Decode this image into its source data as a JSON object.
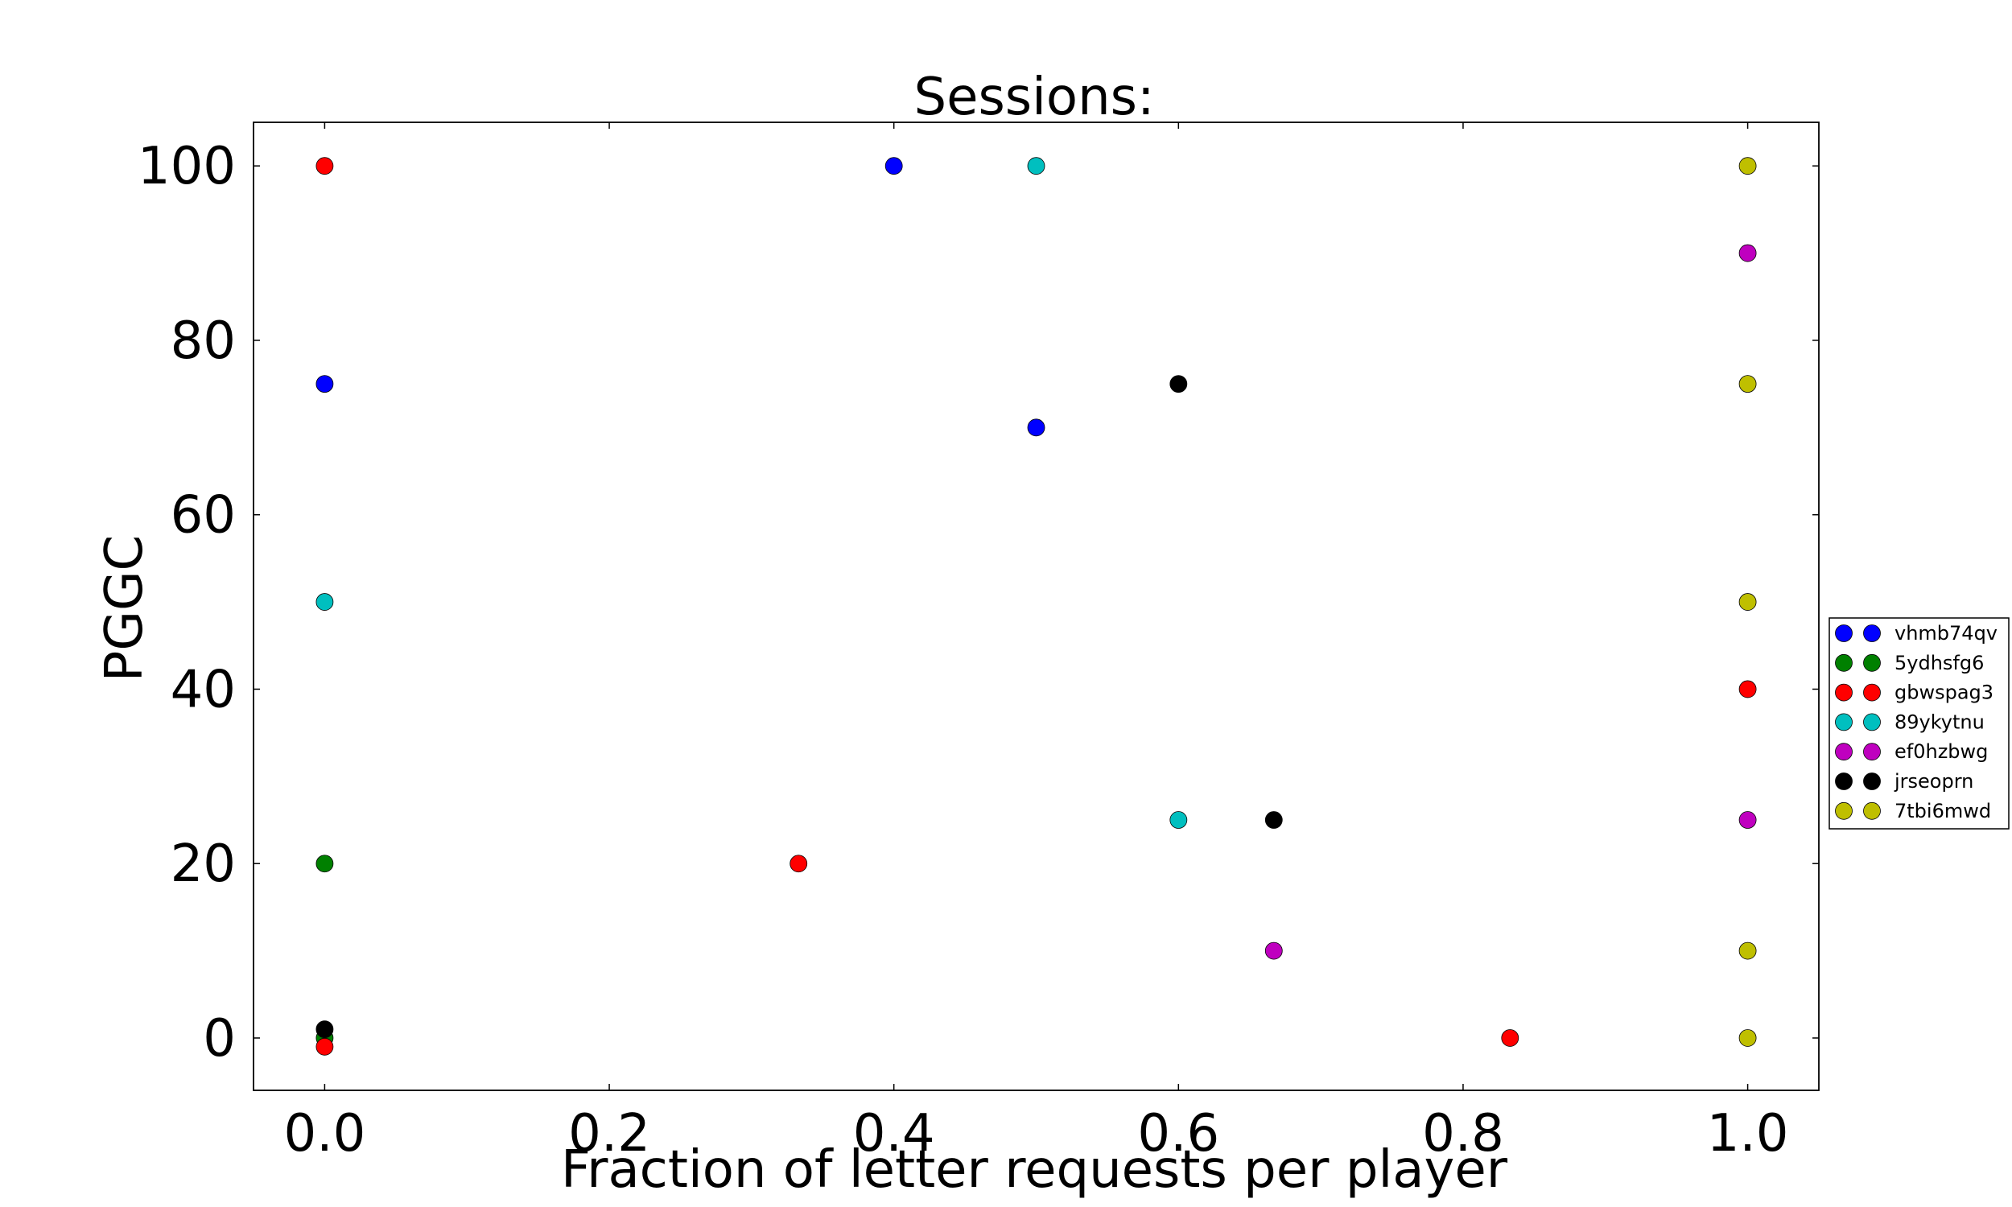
{
  "chart_data": {
    "type": "scatter",
    "title": "Sessions:",
    "xlabel": "Fraction of letter requests per player",
    "ylabel": "PGGC",
    "xlim": [
      -0.05,
      1.05
    ],
    "ylim": [
      -6,
      105
    ],
    "xticks": [
      0.0,
      0.2,
      0.4,
      0.6,
      0.8,
      1.0
    ],
    "xtick_labels": [
      "0.0",
      "0.2",
      "0.4",
      "0.6",
      "0.8",
      "1.0"
    ],
    "yticks": [
      0,
      20,
      40,
      60,
      80,
      100
    ],
    "ytick_labels": [
      "0",
      "20",
      "40",
      "60",
      "80",
      "100"
    ],
    "grid": false,
    "legend_position": "outside-right",
    "series": [
      {
        "name": "vhmb74qv",
        "color": "#0000ff",
        "points": [
          [
            0.0,
            75
          ],
          [
            0.4,
            100
          ],
          [
            0.5,
            70
          ]
        ]
      },
      {
        "name": "5ydhsfg6",
        "color": "#008000",
        "points": [
          [
            0.0,
            20
          ],
          [
            0.0,
            0
          ]
        ]
      },
      {
        "name": "gbwspag3",
        "color": "#ff0000",
        "points": [
          [
            0.0,
            100
          ],
          [
            0.0,
            -1
          ],
          [
            0.333,
            20
          ],
          [
            0.833,
            0
          ],
          [
            1.0,
            40
          ]
        ]
      },
      {
        "name": "89ykytnu",
        "color": "#00bfbf",
        "points": [
          [
            0.0,
            50
          ],
          [
            0.5,
            100
          ],
          [
            0.6,
            25
          ]
        ]
      },
      {
        "name": "ef0hzbwg",
        "color": "#bf00bf",
        "points": [
          [
            0.667,
            10
          ],
          [
            1.0,
            90
          ],
          [
            1.0,
            25
          ]
        ]
      },
      {
        "name": "jrseoprn",
        "color": "#000000",
        "points": [
          [
            0.0,
            1
          ],
          [
            0.6,
            75
          ],
          [
            0.667,
            25
          ]
        ]
      },
      {
        "name": "7tbi6mwd",
        "color": "#bfbf00",
        "points": [
          [
            1.0,
            100
          ],
          [
            1.0,
            75
          ],
          [
            1.0,
            50
          ],
          [
            1.0,
            10
          ],
          [
            1.0,
            0
          ]
        ]
      }
    ]
  }
}
